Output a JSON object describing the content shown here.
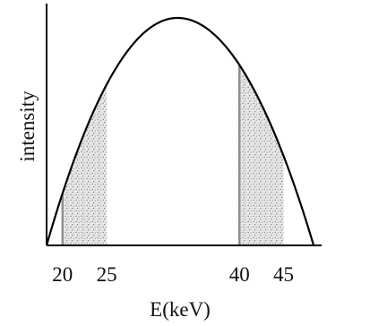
{
  "chart_data": {
    "type": "area",
    "title": "",
    "xlabel": "E(keV)",
    "ylabel": "intensity",
    "x_ticks": [
      20,
      25,
      40,
      45
    ],
    "xlim": [
      18.2,
      49.3
    ],
    "ylim": [
      0,
      1
    ],
    "curve_x_range": [
      18.2,
      48.4
    ],
    "peak": {
      "x": 33,
      "y": 1
    },
    "shaded_bands": [
      {
        "from": 20,
        "to": 25
      },
      {
        "from": 40,
        "to": 45
      }
    ],
    "grid": false,
    "legend": "none",
    "colors": {
      "curve": "#000000",
      "axes": "#000000",
      "shade": "#9c9c9c"
    }
  }
}
